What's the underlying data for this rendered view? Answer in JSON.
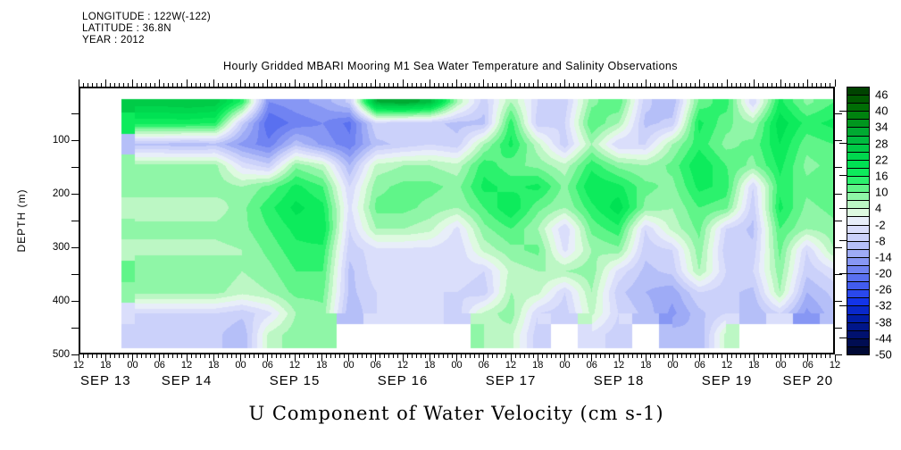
{
  "header": {
    "line1": "LONGITUDE : 122W(-122)",
    "line2": "LATITUDE : 36.8N",
    "line3": "YEAR : 2012"
  },
  "title": "Hourly Gridded MBARI Mooring M1 Sea Water Temperature and Salinity Observations",
  "bottom_title": "U Component of Water Velocity (cm s-1)",
  "y_axis_title": "DEPTH (m)",
  "chart_data": {
    "type": "heatmap",
    "title": "Hourly Gridded MBARI Mooring M1 Sea Water Temperature and Salinity Observations",
    "variable_label": "U Component of Water Velocity (cm s-1)",
    "x_axis": {
      "start": "SEP 13 12:00",
      "end": "SEP 20 12:00",
      "tick_step_hours": 6,
      "minor_tick_hours": 1,
      "hour_labels": [
        "12",
        "18",
        "00",
        "06",
        "12",
        "18",
        "00",
        "06",
        "12",
        "18",
        "00",
        "06",
        "12",
        "18",
        "00",
        "06",
        "12",
        "18",
        "00",
        "06",
        "12",
        "18",
        "00",
        "06",
        "12",
        "18",
        "00",
        "06",
        "12"
      ],
      "date_labels": [
        "SEP 13",
        "SEP 14",
        "SEP 15",
        "SEP 16",
        "SEP 17",
        "SEP 18",
        "SEP 19",
        "SEP 20"
      ]
    },
    "y_axis": {
      "label": "DEPTH (m)",
      "range": [
        0,
        500
      ],
      "inverted": true,
      "major_tick_labels": [
        "100",
        "200",
        "300",
        "400",
        "500"
      ],
      "minor_tick_step_m": 50
    },
    "colorbar": {
      "tick_labels": [
        "46",
        "40",
        "34",
        "28",
        "22",
        "16",
        "10",
        "4",
        "-2",
        "-8",
        "-14",
        "-20",
        "-26",
        "-32",
        "-38",
        "-44",
        "-50"
      ],
      "cells": 33,
      "top_value": 49,
      "bottom_value": -50,
      "cell_step": 3
    },
    "colormap_anchors": [
      [
        -50,
        "#000830"
      ],
      [
        -44,
        "#00106a"
      ],
      [
        -38,
        "#001ba0"
      ],
      [
        -32,
        "#0f31e8"
      ],
      [
        -26,
        "#3e59ee"
      ],
      [
        -20,
        "#6c80f2"
      ],
      [
        -14,
        "#9aa8f6"
      ],
      [
        -8,
        "#c8cffa"
      ],
      [
        -2,
        "#e6e9fc"
      ],
      [
        0,
        "#eefcee"
      ],
      [
        4,
        "#c3f7c9"
      ],
      [
        10,
        "#69f58e"
      ],
      [
        14,
        "#22f268"
      ],
      [
        18,
        "#00e655"
      ],
      [
        24,
        "#00d24b"
      ],
      [
        30,
        "#00b43c"
      ],
      [
        36,
        "#008c14"
      ],
      [
        42,
        "#006400"
      ],
      [
        48,
        "#003800"
      ]
    ],
    "grid": {
      "time_hours_from_start": [
        0,
        6,
        12,
        18,
        24,
        30,
        36,
        42,
        48,
        54,
        60,
        66,
        72,
        78,
        84,
        90,
        96,
        102,
        108,
        114,
        120,
        126,
        132,
        138,
        144,
        150,
        156,
        162,
        168
      ],
      "depths_m": [
        25,
        65,
        105,
        145,
        185,
        225,
        265,
        305,
        345,
        385,
        425,
        465
      ],
      "missing_value": null,
      "data_top_depth_m": 20,
      "data_bottom_depth_m": 490,
      "values_by_time_column": [
        [
          null,
          null,
          null,
          null,
          null,
          null,
          null,
          null,
          null,
          null,
          null,
          null
        ],
        [
          null,
          null,
          null,
          null,
          null,
          null,
          null,
          null,
          null,
          null,
          null,
          null
        ],
        [
          26,
          16,
          -10,
          7,
          8,
          4,
          7,
          5,
          9,
          7,
          -6,
          -8
        ],
        [
          26,
          16,
          -10,
          7,
          8,
          4,
          7,
          5,
          9,
          7,
          -6,
          -8
        ],
        [
          27,
          16,
          -11,
          7,
          8,
          4,
          7,
          5,
          9,
          7,
          -6,
          -8
        ],
        [
          26,
          15,
          -10,
          7,
          8,
          4,
          7,
          5,
          9,
          7,
          -6,
          -8
        ],
        [
          14,
          -8,
          -16,
          -4,
          6,
          8,
          8,
          6,
          6,
          4,
          -8,
          -12
        ],
        [
          -18,
          -24,
          -20,
          -8,
          10,
          14,
          12,
          10,
          8,
          6,
          -4,
          4
        ],
        [
          -16,
          -20,
          -10,
          8,
          16,
          19,
          16,
          14,
          12,
          10,
          6,
          8
        ],
        [
          -14,
          -18,
          -16,
          4,
          12,
          16,
          18,
          14,
          12,
          10,
          8,
          6
        ],
        [
          -8,
          -22,
          -20,
          -12,
          -6,
          -4,
          -6,
          -8,
          -10,
          -10,
          -12,
          null
        ],
        [
          30,
          -6,
          -10,
          4,
          8,
          10,
          6,
          -4,
          -4,
          -6,
          -6,
          null
        ],
        [
          33,
          -8,
          -8,
          6,
          10,
          10,
          6,
          -4,
          -6,
          -4,
          -6,
          null
        ],
        [
          28,
          -8,
          -6,
          6,
          10,
          8,
          4,
          -4,
          -6,
          -6,
          -4,
          null
        ],
        [
          6,
          -10,
          -8,
          4,
          8,
          6,
          -4,
          -6,
          -4,
          -6,
          -8,
          null
        ],
        [
          -8,
          -10,
          6,
          14,
          16,
          12,
          8,
          4,
          -6,
          -8,
          4,
          6
        ],
        [
          6,
          14,
          16,
          10,
          14,
          18,
          12,
          8,
          4,
          6,
          8,
          4
        ],
        [
          -6,
          -8,
          4,
          8,
          16,
          10,
          6,
          10,
          6,
          4,
          -6,
          -8
        ],
        [
          -8,
          -6,
          -8,
          4,
          8,
          6,
          -6,
          -4,
          6,
          -6,
          -8,
          null
        ],
        [
          8,
          12,
          6,
          14,
          18,
          14,
          10,
          6,
          8,
          6,
          4,
          -4
        ],
        [
          12,
          6,
          -6,
          8,
          16,
          20,
          14,
          8,
          -4,
          -8,
          -6,
          -8
        ],
        [
          -8,
          -10,
          -6,
          6,
          10,
          8,
          -6,
          -8,
          -10,
          -12,
          -10,
          null
        ],
        [
          -12,
          -8,
          6,
          10,
          8,
          6,
          4,
          -6,
          -8,
          -14,
          -16,
          -10
        ],
        [
          10,
          16,
          14,
          18,
          16,
          12,
          10,
          8,
          6,
          -6,
          -10,
          -12
        ],
        [
          14,
          10,
          8,
          12,
          14,
          10,
          -6,
          -8,
          -6,
          -8,
          -6,
          4
        ],
        [
          -6,
          6,
          10,
          8,
          -6,
          -8,
          -10,
          -8,
          -6,
          -10,
          -12,
          null
        ],
        [
          16,
          20,
          18,
          16,
          14,
          16,
          12,
          10,
          8,
          6,
          -6,
          null
        ],
        [
          8,
          14,
          10,
          8,
          10,
          8,
          6,
          -6,
          -8,
          -12,
          -16,
          null
        ],
        [
          12,
          16,
          12,
          10,
          12,
          10,
          8,
          6,
          -4,
          -8,
          -10,
          null
        ]
      ]
    }
  }
}
